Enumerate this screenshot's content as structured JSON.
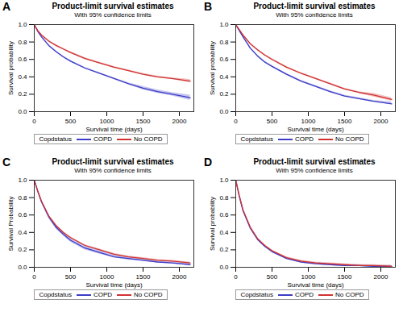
{
  "chart_data": [
    {
      "type": "line",
      "panel": "A",
      "title": "Product-limit survival estimates",
      "subtitle": "With 95% confidence limits",
      "x_label": "Survival time (days)",
      "y_label": "Survival probability",
      "legend_title": "Copdstatus",
      "legend": "bottom",
      "x": [
        0,
        50,
        100,
        200,
        300,
        400,
        500,
        700,
        900,
        1100,
        1300,
        1500,
        1700,
        1900,
        2150
      ],
      "series": [
        {
          "name": "COPD",
          "color": "#3c3cc8",
          "values": [
            1,
            0.92,
            0.86,
            0.76,
            0.69,
            0.63,
            0.58,
            0.5,
            0.44,
            0.38,
            0.32,
            0.27,
            0.23,
            0.2,
            0.16
          ],
          "lower": [
            1,
            0.91,
            0.85,
            0.75,
            0.68,
            0.62,
            0.57,
            0.49,
            0.43,
            0.37,
            0.31,
            0.25,
            0.21,
            0.18,
            0.13
          ],
          "upper": [
            1,
            0.93,
            0.87,
            0.77,
            0.7,
            0.64,
            0.59,
            0.51,
            0.45,
            0.39,
            0.33,
            0.29,
            0.25,
            0.22,
            0.19
          ]
        },
        {
          "name": "No COPD",
          "color": "#d03232",
          "values": [
            1,
            0.93,
            0.88,
            0.81,
            0.76,
            0.72,
            0.68,
            0.61,
            0.56,
            0.51,
            0.47,
            0.43,
            0.4,
            0.38,
            0.35
          ],
          "lower": [
            1,
            0.92,
            0.87,
            0.8,
            0.75,
            0.71,
            0.67,
            0.6,
            0.55,
            0.5,
            0.46,
            0.42,
            0.39,
            0.37,
            0.33
          ],
          "upper": [
            1,
            0.94,
            0.89,
            0.82,
            0.77,
            0.73,
            0.69,
            0.62,
            0.57,
            0.52,
            0.48,
            0.44,
            0.41,
            0.39,
            0.37
          ]
        }
      ],
      "xlim": [
        0,
        2200
      ],
      "ylim": [
        0,
        1
      ],
      "xticks": [
        0,
        500,
        1000,
        1500,
        2000
      ],
      "yticks": [
        {
          "value": 0,
          "label": "0.0"
        },
        {
          "value": 0.2,
          "label": "0.2"
        },
        {
          "value": 0.4,
          "label": "0.4"
        },
        {
          "value": 0.6,
          "label": "0.6"
        },
        {
          "value": 0.8,
          "label": "0.8"
        },
        {
          "value": 1,
          "label": "1.0"
        }
      ]
    },
    {
      "type": "line",
      "panel": "B",
      "title": "Product-limit survival estimates",
      "subtitle": "With 95% confidence limits",
      "x_label": "Survival time (days)",
      "y_label": "Survival probability",
      "legend_title": "Copdstatus",
      "legend": "bottom",
      "x": [
        0,
        50,
        100,
        200,
        300,
        400,
        500,
        700,
        900,
        1100,
        1300,
        1500,
        1700,
        1900,
        2150
      ],
      "series": [
        {
          "name": "COPD",
          "color": "#3c3cc8",
          "values": [
            1,
            0.93,
            0.86,
            0.73,
            0.64,
            0.57,
            0.52,
            0.43,
            0.35,
            0.29,
            0.23,
            0.18,
            0.15,
            0.12,
            0.09
          ],
          "lower": [
            1,
            0.92,
            0.85,
            0.72,
            0.63,
            0.56,
            0.51,
            0.42,
            0.34,
            0.28,
            0.22,
            0.17,
            0.14,
            0.11,
            0.08
          ],
          "upper": [
            1,
            0.94,
            0.87,
            0.74,
            0.65,
            0.58,
            0.53,
            0.44,
            0.36,
            0.3,
            0.24,
            0.19,
            0.16,
            0.13,
            0.11
          ]
        },
        {
          "name": "No COPD",
          "color": "#d03232",
          "values": [
            1,
            0.94,
            0.88,
            0.78,
            0.71,
            0.65,
            0.6,
            0.51,
            0.44,
            0.38,
            0.32,
            0.26,
            0.22,
            0.19,
            0.14
          ],
          "lower": [
            1,
            0.93,
            0.87,
            0.77,
            0.7,
            0.64,
            0.59,
            0.5,
            0.43,
            0.37,
            0.31,
            0.25,
            0.21,
            0.17,
            0.12
          ],
          "upper": [
            1,
            0.95,
            0.89,
            0.79,
            0.72,
            0.66,
            0.61,
            0.52,
            0.45,
            0.39,
            0.33,
            0.27,
            0.23,
            0.21,
            0.16
          ]
        }
      ],
      "xlim": [
        0,
        2200
      ],
      "ylim": [
        0,
        1
      ],
      "xticks": [
        0,
        500,
        1000,
        1500,
        2000
      ],
      "yticks": [
        {
          "value": 0,
          "label": "0.0"
        },
        {
          "value": 0.2,
          "label": "0.2"
        },
        {
          "value": 0.4,
          "label": "0.4"
        },
        {
          "value": 0.6,
          "label": "0.6"
        },
        {
          "value": 0.8,
          "label": "0.8"
        },
        {
          "value": 1,
          "label": "1.0"
        }
      ]
    },
    {
      "type": "line",
      "panel": "C",
      "title": "Product-limit survival estimates",
      "subtitle": "With 95% confidence limits",
      "x_label": "Survival time (days)",
      "y_label": "Survival Probability",
      "legend_title": "Copdstatus",
      "legend": "bottom",
      "x": [
        0,
        50,
        100,
        200,
        300,
        400,
        500,
        700,
        900,
        1100,
        1300,
        1500,
        1700,
        1900,
        2150
      ],
      "series": [
        {
          "name": "COPD",
          "color": "#3c3cc8",
          "values": [
            1,
            0.87,
            0.75,
            0.58,
            0.46,
            0.38,
            0.31,
            0.22,
            0.17,
            0.12,
            0.1,
            0.08,
            0.06,
            0.05,
            0.03
          ],
          "lower": [
            1,
            0.86,
            0.74,
            0.56,
            0.44,
            0.36,
            0.29,
            0.2,
            0.15,
            0.11,
            0.08,
            0.07,
            0.05,
            0.04,
            0.02
          ],
          "upper": [
            1,
            0.88,
            0.76,
            0.6,
            0.48,
            0.4,
            0.33,
            0.24,
            0.19,
            0.14,
            0.12,
            0.09,
            0.07,
            0.06,
            0.04
          ]
        },
        {
          "name": "No COPD",
          "color": "#d03232",
          "values": [
            1,
            0.87,
            0.76,
            0.59,
            0.48,
            0.4,
            0.34,
            0.25,
            0.2,
            0.15,
            0.12,
            0.1,
            0.08,
            0.07,
            0.05
          ],
          "lower": [
            1,
            0.86,
            0.75,
            0.58,
            0.47,
            0.39,
            0.33,
            0.24,
            0.19,
            0.14,
            0.11,
            0.09,
            0.07,
            0.06,
            0.04
          ],
          "upper": [
            1,
            0.88,
            0.77,
            0.6,
            0.49,
            0.41,
            0.35,
            0.26,
            0.21,
            0.16,
            0.13,
            0.11,
            0.09,
            0.08,
            0.06
          ]
        }
      ],
      "xlim": [
        0,
        2200
      ],
      "ylim": [
        0,
        1
      ],
      "xticks": [
        0,
        500,
        1000,
        1500,
        2000
      ],
      "yticks": [
        {
          "value": 0,
          "label": "0.0"
        },
        {
          "value": 0.2,
          "label": "0.2"
        },
        {
          "value": 0.4,
          "label": "0.4"
        },
        {
          "value": 0.6,
          "label": "0.6"
        },
        {
          "value": 0.8,
          "label": "0.8"
        },
        {
          "value": 1,
          "label": "1.0"
        }
      ]
    },
    {
      "type": "line",
      "panel": "D",
      "title": "Product-limit survival estimates",
      "subtitle": "With 95% confidence limits",
      "x_label": "Survival time (days)",
      "y_label": "Survival probability",
      "legend_title": "Copdstatus",
      "legend": "bottom",
      "x": [
        0,
        50,
        100,
        200,
        300,
        400,
        500,
        700,
        900,
        1100,
        1300,
        1500,
        1700,
        1900,
        2150
      ],
      "series": [
        {
          "name": "COPD",
          "color": "#3c3cc8",
          "values": [
            1,
            0.81,
            0.65,
            0.45,
            0.32,
            0.24,
            0.18,
            0.1,
            0.06,
            0.04,
            0.03,
            0.02,
            0.02,
            0.01,
            0.01
          ],
          "lower": [
            1,
            0.8,
            0.64,
            0.44,
            0.31,
            0.23,
            0.17,
            0.09,
            0.05,
            0.03,
            0.02,
            0.01,
            0.01,
            0,
            0
          ],
          "upper": [
            1,
            0.82,
            0.66,
            0.46,
            0.33,
            0.25,
            0.19,
            0.11,
            0.07,
            0.05,
            0.04,
            0.03,
            0.03,
            0.02,
            0.02
          ]
        },
        {
          "name": "No COPD",
          "color": "#d03232",
          "values": [
            1,
            0.82,
            0.66,
            0.46,
            0.33,
            0.25,
            0.19,
            0.11,
            0.07,
            0.05,
            0.04,
            0.03,
            0.02,
            0.02,
            0.01
          ],
          "lower": [
            1,
            0.81,
            0.65,
            0.45,
            0.32,
            0.24,
            0.18,
            0.1,
            0.06,
            0.04,
            0.03,
            0.02,
            0.01,
            0.01,
            0
          ],
          "upper": [
            1,
            0.83,
            0.67,
            0.47,
            0.34,
            0.26,
            0.2,
            0.12,
            0.08,
            0.06,
            0.05,
            0.04,
            0.03,
            0.03,
            0.02
          ]
        }
      ],
      "xlim": [
        0,
        2200
      ],
      "ylim": [
        0,
        1
      ],
      "xticks": [
        0,
        500,
        1000,
        1500,
        2000
      ],
      "yticks": [
        {
          "value": 0,
          "label": "0.0"
        },
        {
          "value": 0.2,
          "label": "0.2"
        },
        {
          "value": 0.4,
          "label": "0.4"
        },
        {
          "value": 0.6,
          "label": "0.6"
        },
        {
          "value": 0.8,
          "label": "0.8"
        },
        {
          "value": 1,
          "label": "1.0"
        }
      ]
    }
  ]
}
